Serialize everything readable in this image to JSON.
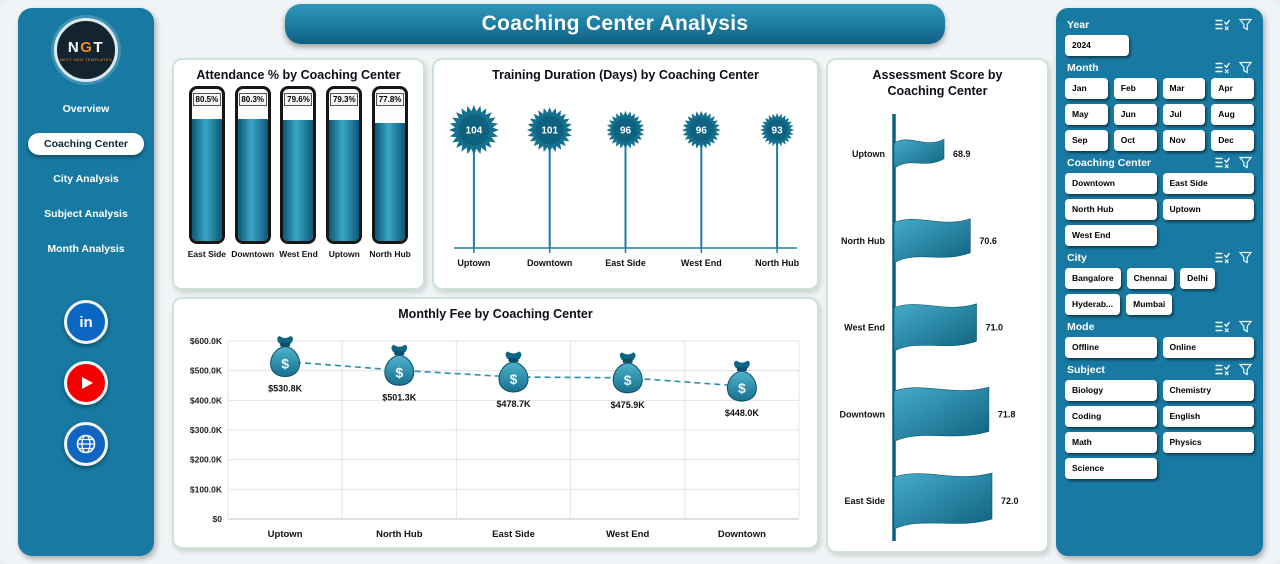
{
  "header": {
    "title": "Coaching Center Analysis"
  },
  "sidebar": {
    "logo": {
      "text": "NGT",
      "subtext": "NEXT GEN TEMPLATES"
    },
    "items": [
      {
        "label": "Overview",
        "active": false
      },
      {
        "label": "Coaching Center",
        "active": true
      },
      {
        "label": "City Analysis",
        "active": false
      },
      {
        "label": "Subject Analysis",
        "active": false
      },
      {
        "label": "Month Analysis",
        "active": false
      }
    ],
    "socials": [
      {
        "id": "linkedin",
        "label": "in"
      },
      {
        "id": "youtube",
        "label": "play"
      },
      {
        "id": "website",
        "label": "globe"
      }
    ]
  },
  "chart_data": [
    {
      "id": "attendance",
      "type": "bar",
      "title": "Attendance % by Coaching Center",
      "categories": [
        "East Side",
        "Downtown",
        "West End",
        "Uptown",
        "North Hub"
      ],
      "values": [
        80.5,
        80.3,
        79.6,
        79.3,
        77.8
      ],
      "labels": [
        "80.5%",
        "80.3%",
        "79.6%",
        "79.3%",
        "77.8%"
      ],
      "ylim": [
        0,
        100
      ],
      "xlabel": "",
      "ylabel": ""
    },
    {
      "id": "duration",
      "type": "lollipop",
      "title": "Training Duration (Days) by Coaching Center",
      "categories": [
        "Uptown",
        "Downtown",
        "East Side",
        "West End",
        "North Hub"
      ],
      "values": [
        104,
        101,
        96,
        96,
        93
      ],
      "xlabel": "",
      "ylabel": ""
    },
    {
      "id": "assessment",
      "type": "flag",
      "title": "Assessment Score by Coaching Center",
      "categories": [
        "Uptown",
        "North Hub",
        "West End",
        "Downtown",
        "East Side"
      ],
      "values": [
        68.9,
        70.6,
        71.0,
        71.8,
        72.0
      ],
      "labels": [
        "68.9",
        "70.6",
        "71.0",
        "71.8",
        "72.0"
      ],
      "orientation": "vertical-axis-flags"
    },
    {
      "id": "fee",
      "type": "line",
      "title": "Monthly Fee by Coaching Center",
      "categories": [
        "Uptown",
        "North Hub",
        "East Side",
        "West End",
        "Downtown"
      ],
      "values": [
        530800,
        501300,
        478700,
        475900,
        448000
      ],
      "labels": [
        "$530.8K",
        "$501.3K",
        "$478.7K",
        "$475.9K",
        "$448.0K"
      ],
      "ylim": [
        0,
        600000
      ],
      "yticks": [
        "$0",
        "$100.0K",
        "$200.0K",
        "$300.0K",
        "$400.0K",
        "$500.0K",
        "$600.0K"
      ],
      "grid": true,
      "line_style": "dashed",
      "marker": "money-bag"
    }
  ],
  "filters": {
    "sections": [
      {
        "id": "year",
        "title": "Year",
        "options": [
          "2024"
        ]
      },
      {
        "id": "month",
        "title": "Month",
        "options": [
          "Jan",
          "Feb",
          "Mar",
          "Apr",
          "May",
          "Jun",
          "Jul",
          "Aug",
          "Sep",
          "Oct",
          "Nov",
          "Dec"
        ]
      },
      {
        "id": "coaching",
        "title": "Coaching Center",
        "options": [
          "Downtown",
          "East Side",
          "North Hub",
          "Uptown",
          "West End"
        ]
      },
      {
        "id": "city",
        "title": "City",
        "options": [
          "Bangalore",
          "Chennai",
          "Delhi",
          "Hyderab...",
          "Mumbai"
        ]
      },
      {
        "id": "mode",
        "title": "Mode",
        "options": [
          "Offline",
          "Online"
        ]
      },
      {
        "id": "subject",
        "title": "Subject",
        "options": [
          "Biology",
          "Chemistry",
          "Coding",
          "English",
          "Math",
          "Physics",
          "Science"
        ]
      }
    ]
  },
  "colors": {
    "panel_teal": "#187aa2",
    "chart_teal": "#15708f",
    "chart_teal_light": "#3aa6c6",
    "header_gradient_top": "#2f97ba",
    "header_gradient_bottom": "#0f5f82",
    "accent_orange": "#f08a24",
    "linkedin_blue": "#0a66c2",
    "youtube_red": "#f40000",
    "website_blue": "#1065c0",
    "panel_border_green": "#cde4d2"
  }
}
